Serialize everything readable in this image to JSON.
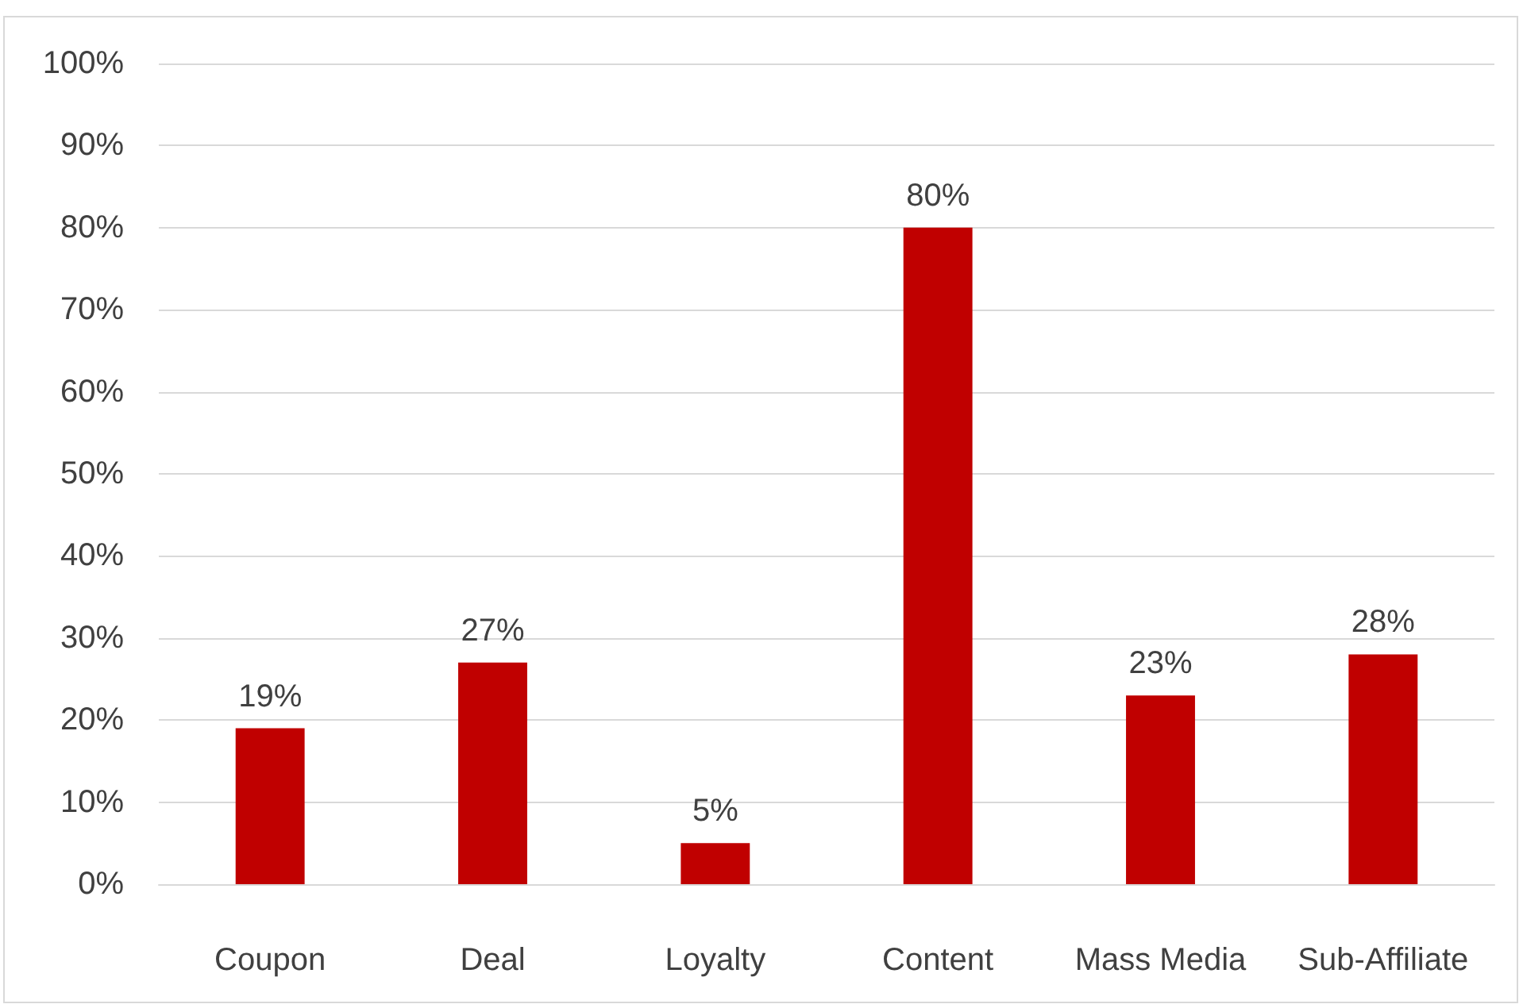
{
  "chart_data": {
    "type": "bar",
    "categories": [
      "Coupon",
      "Deal",
      "Loyalty",
      "Content",
      "Mass Media",
      "Sub-Affiliate"
    ],
    "values": [
      19,
      27,
      5,
      80,
      23,
      28
    ],
    "value_labels": [
      "19%",
      "27%",
      "5%",
      "80%",
      "23%",
      "28%"
    ],
    "color": "#c00000",
    "ylim": [
      0,
      100
    ],
    "yticks": [
      {
        "value": 0,
        "label": "0%"
      },
      {
        "value": 10,
        "label": "10%"
      },
      {
        "value": 20,
        "label": "20%"
      },
      {
        "value": 30,
        "label": "30%"
      },
      {
        "value": 40,
        "label": "40%"
      },
      {
        "value": 50,
        "label": "50%"
      },
      {
        "value": 60,
        "label": "60%"
      },
      {
        "value": 70,
        "label": "70%"
      },
      {
        "value": 80,
        "label": "80%"
      },
      {
        "value": 90,
        "label": "90%"
      },
      {
        "value": 100,
        "label": "100%"
      }
    ],
    "grid": "y"
  }
}
